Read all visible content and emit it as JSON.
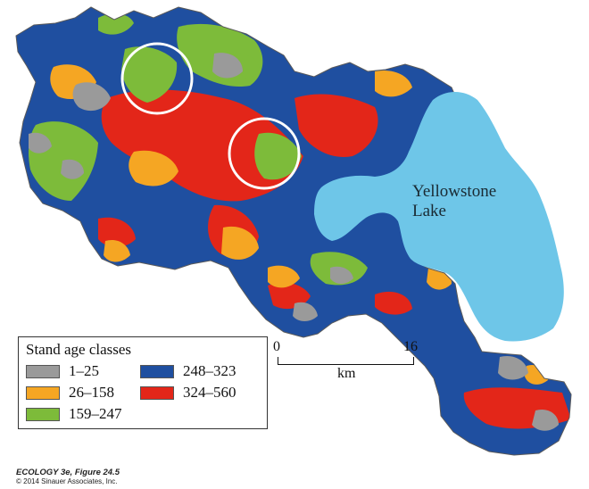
{
  "map": {
    "lake_label_line1": "Yellowstone",
    "lake_label_line2": "Lake",
    "colors": {
      "background": "#ffffff",
      "lake": "#6ec6e8",
      "outline": "#5a5a5a",
      "highlight_circle": "#ffffff"
    },
    "highlight_circles": 2
  },
  "legend": {
    "title": "Stand age classes",
    "items": [
      {
        "label": "1–25",
        "color": "#9a9a9a"
      },
      {
        "label": "26–158",
        "color": "#f5a623"
      },
      {
        "label": "159–247",
        "color": "#7dbb3a"
      },
      {
        "label": "248–323",
        "color": "#1f4fa0"
      },
      {
        "label": "324–560",
        "color": "#e32619"
      }
    ]
  },
  "scale_bar": {
    "start": "0",
    "end": "16",
    "unit": "km"
  },
  "caption": {
    "line1": "ECOLOGY 3e, Figure 24.5",
    "line2": "© 2014 Sinauer Associates, Inc."
  }
}
